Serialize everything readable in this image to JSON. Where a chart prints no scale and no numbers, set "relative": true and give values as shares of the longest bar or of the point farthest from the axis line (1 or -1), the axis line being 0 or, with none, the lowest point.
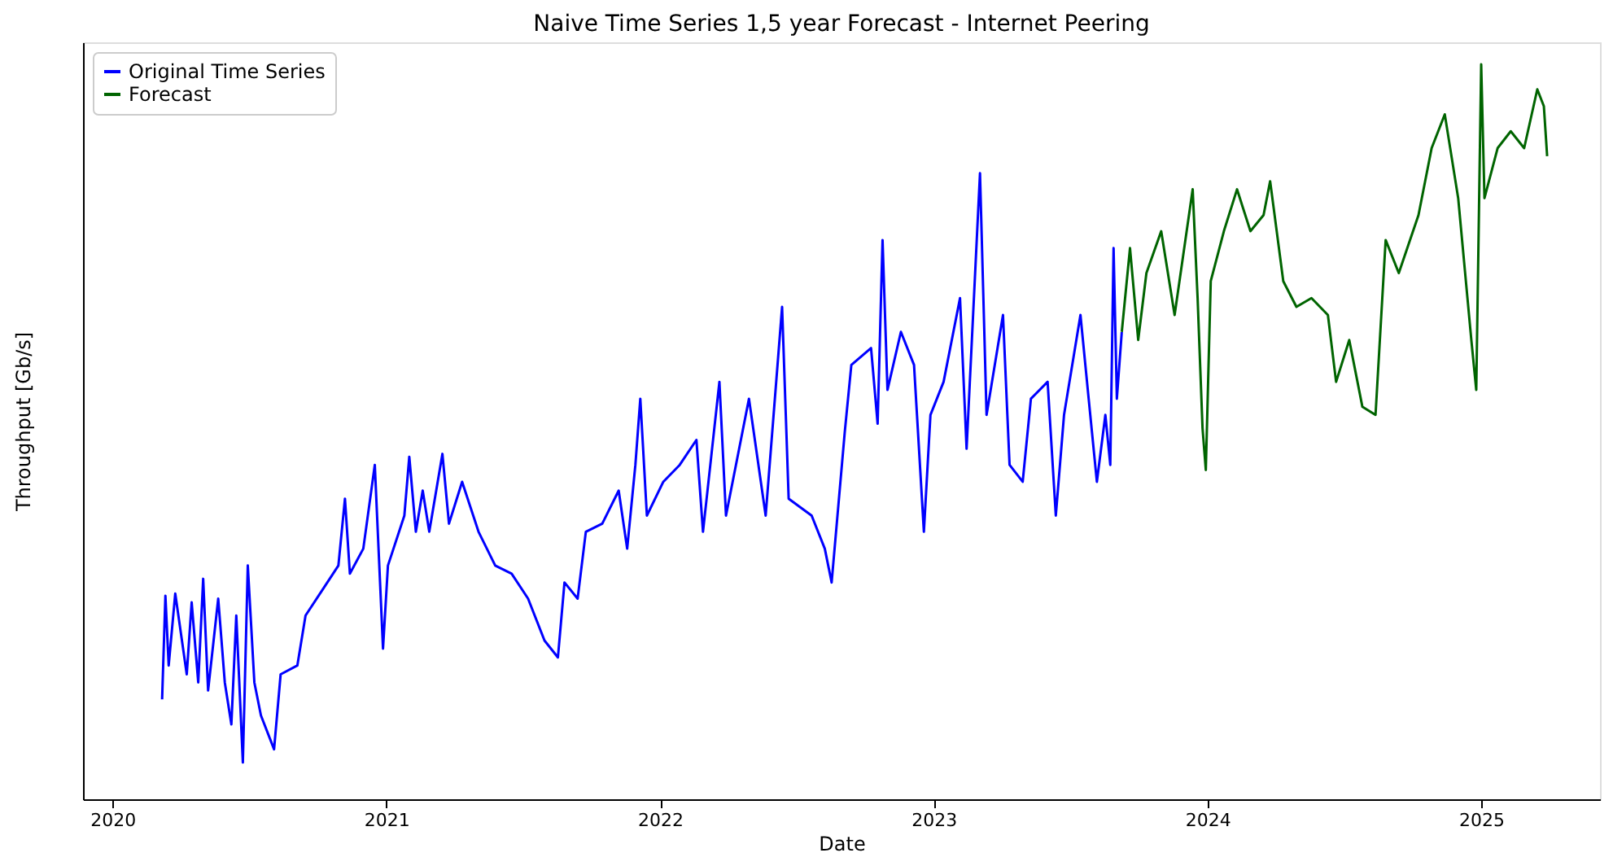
{
  "chart_data": {
    "type": "line",
    "title": "Naive Time Series 1,5 year Forecast - Internet Peering",
    "xlabel": "Date",
    "ylabel": "Throughput [Gb/s]",
    "relative": true,
    "xlim": [
      2019.892,
      2025.434
    ],
    "xticks": [
      2020,
      2021,
      2022,
      2023,
      2024,
      2025
    ],
    "grid": false,
    "legend": "top left",
    "marker": "none",
    "line_style": "solid",
    "series": [
      {
        "name": "Original Time Series",
        "color": "#0000ff",
        "x": [
          2020.181,
          2020.193,
          2020.205,
          2020.229,
          2020.271,
          2020.289,
          2020.313,
          2020.331,
          2020.349,
          2020.386,
          2020.41,
          2020.434,
          2020.452,
          2020.476,
          2020.494,
          2020.518,
          2020.542,
          2020.59,
          2020.614,
          2020.675,
          2020.705,
          2020.765,
          2020.825,
          2020.849,
          2020.867,
          2020.916,
          2020.958,
          2020.988,
          2021.006,
          2021.066,
          2021.084,
          2021.108,
          2021.133,
          2021.157,
          2021.205,
          2021.229,
          2021.277,
          2021.337,
          2021.398,
          2021.458,
          2021.518,
          2021.578,
          2021.627,
          2021.651,
          2021.699,
          2021.729,
          2021.789,
          2021.849,
          2021.88,
          2021.91,
          2021.928,
          2021.952,
          2022.012,
          2022.072,
          2022.133,
          2022.157,
          2022.217,
          2022.241,
          2022.325,
          2022.386,
          2022.446,
          2022.47,
          2022.554,
          2022.602,
          2022.627,
          2022.675,
          2022.699,
          2022.771,
          2022.795,
          2022.813,
          2022.831,
          2022.88,
          2022.928,
          2022.964,
          2022.988,
          2023.036,
          2023.096,
          2023.12,
          2023.169,
          2023.193,
          2023.253,
          2023.277,
          2023.325,
          2023.355,
          2023.416,
          2023.446,
          2023.476,
          2023.536,
          2023.566,
          2023.596,
          2023.627,
          2023.645,
          2023.657,
          2023.669,
          2023.687
        ],
        "values": [
          0.136,
          0.277,
          0.182,
          0.28,
          0.17,
          0.268,
          0.159,
          0.3,
          0.148,
          0.273,
          0.159,
          0.102,
          0.25,
          0.05,
          0.318,
          0.159,
          0.114,
          0.068,
          0.17,
          0.182,
          0.25,
          0.284,
          0.318,
          0.409,
          0.307,
          0.341,
          0.455,
          0.205,
          0.318,
          0.386,
          0.466,
          0.364,
          0.42,
          0.364,
          0.47,
          0.375,
          0.432,
          0.364,
          0.318,
          0.307,
          0.273,
          0.216,
          0.193,
          0.295,
          0.273,
          0.364,
          0.375,
          0.42,
          0.341,
          0.455,
          0.545,
          0.386,
          0.432,
          0.455,
          0.489,
          0.364,
          0.568,
          0.386,
          0.545,
          0.386,
          0.67,
          0.409,
          0.386,
          0.341,
          0.295,
          0.5,
          0.591,
          0.614,
          0.511,
          0.761,
          0.557,
          0.636,
          0.591,
          0.364,
          0.523,
          0.568,
          0.682,
          0.477,
          0.852,
          0.523,
          0.659,
          0.455,
          0.432,
          0.545,
          0.568,
          0.386,
          0.523,
          0.659,
          0.545,
          0.432,
          0.523,
          0.455,
          0.75,
          0.545,
          0.636
        ]
      },
      {
        "name": "Forecast",
        "color": "#006400",
        "x": [
          2023.687,
          2023.717,
          2023.747,
          2023.777,
          2023.831,
          2023.88,
          2023.946,
          2023.964,
          2023.982,
          2023.994,
          2024.012,
          2024.06,
          2024.108,
          2024.157,
          2024.205,
          2024.229,
          2024.277,
          2024.325,
          2024.38,
          2024.44,
          2024.47,
          2024.518,
          2024.566,
          2024.614,
          2024.651,
          2024.699,
          2024.771,
          2024.819,
          2024.867,
          2024.916,
          2024.964,
          2024.982,
          2025.0,
          2025.012,
          2025.06,
          2025.108,
          2025.157,
          2025.205,
          2025.229,
          2025.241
        ],
        "values": [
          0.636,
          0.75,
          0.625,
          0.716,
          0.773,
          0.659,
          0.83,
          0.682,
          0.505,
          0.448,
          0.705,
          0.773,
          0.83,
          0.773,
          0.795,
          0.841,
          0.705,
          0.67,
          0.682,
          0.659,
          0.568,
          0.625,
          0.534,
          0.523,
          0.761,
          0.716,
          0.795,
          0.886,
          0.932,
          0.818,
          0.625,
          0.557,
          1.0,
          0.818,
          0.886,
          0.909,
          0.886,
          0.966,
          0.943,
          0.875
        ]
      }
    ]
  }
}
